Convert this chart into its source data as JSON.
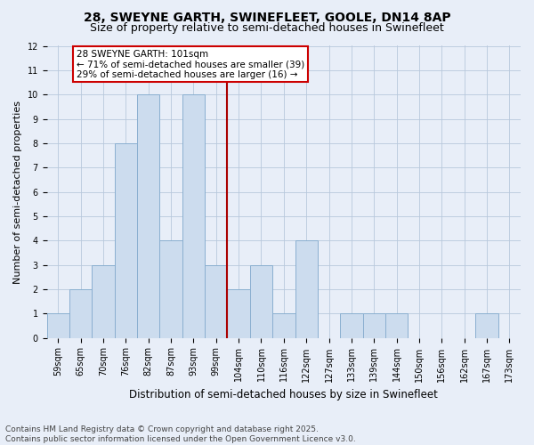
{
  "title1": "28, SWEYNE GARTH, SWINEFLEET, GOOLE, DN14 8AP",
  "title2": "Size of property relative to semi-detached houses in Swinefleet",
  "xlabel": "Distribution of semi-detached houses by size in Swinefleet",
  "ylabel": "Number of semi-detached properties",
  "categories": [
    "59sqm",
    "65sqm",
    "70sqm",
    "76sqm",
    "82sqm",
    "87sqm",
    "93sqm",
    "99sqm",
    "104sqm",
    "110sqm",
    "116sqm",
    "122sqm",
    "127sqm",
    "133sqm",
    "139sqm",
    "144sqm",
    "150sqm",
    "156sqm",
    "162sqm",
    "167sqm",
    "173sqm"
  ],
  "values": [
    1,
    2,
    3,
    8,
    10,
    4,
    10,
    3,
    2,
    3,
    1,
    4,
    0,
    1,
    1,
    1,
    0,
    0,
    0,
    1,
    0
  ],
  "bar_color": "#ccdcee",
  "bar_edge_color": "#8aafd0",
  "vline_color": "#aa0000",
  "vline_index": 7,
  "annotation_text": "28 SWEYNE GARTH: 101sqm\n← 71% of semi-detached houses are smaller (39)\n29% of semi-detached houses are larger (16) →",
  "annotation_box_facecolor": "#ffffff",
  "annotation_box_edge": "#cc0000",
  "ylim": [
    0,
    12
  ],
  "yticks": [
    0,
    1,
    2,
    3,
    4,
    5,
    6,
    7,
    8,
    9,
    10,
    11,
    12
  ],
  "footer": "Contains HM Land Registry data © Crown copyright and database right 2025.\nContains public sector information licensed under the Open Government Licence v3.0.",
  "background_color": "#e8eef8",
  "grid_color": "#b8c8dc",
  "title_fontsize": 10,
  "subtitle_fontsize": 9,
  "tick_fontsize": 7,
  "ylabel_fontsize": 8,
  "xlabel_fontsize": 8.5,
  "footer_fontsize": 6.5,
  "annot_fontsize": 7.5
}
